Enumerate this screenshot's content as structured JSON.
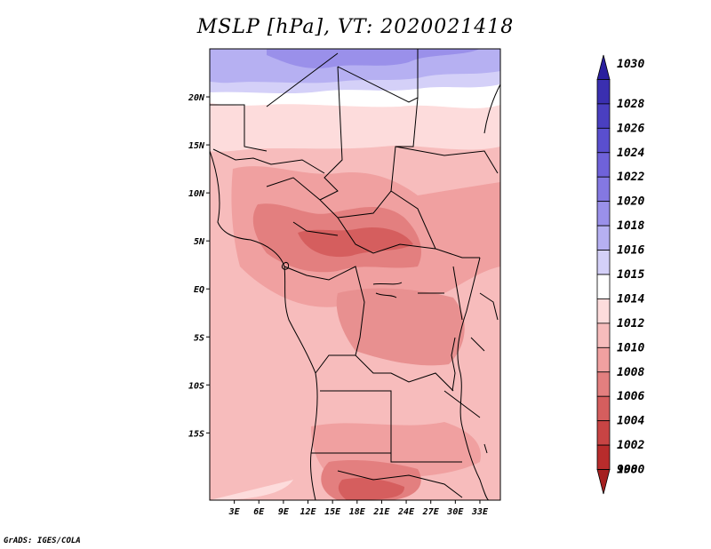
{
  "title": "MSLP [hPa], VT: 2020021418",
  "footer": "GrADS: IGES/COLA",
  "map": {
    "lon_range": [
      0,
      35.5
    ],
    "lat_range": [
      -22,
      25
    ],
    "lon_ticks": [
      "3E",
      "6E",
      "9E",
      "12E",
      "15E",
      "18E",
      "21E",
      "24E",
      "27E",
      "30E",
      "33E"
    ],
    "lat_ticks": [
      "20N",
      "15N",
      "10N",
      "5N",
      "EQ",
      "5S",
      "10S",
      "15S"
    ]
  },
  "colorbar": {
    "levels": [
      "1030",
      "1028",
      "1026",
      "1024",
      "1022",
      "1020",
      "1018",
      "1016",
      "1015",
      "1014",
      "1012",
      "1010",
      "1008",
      "1006",
      "1004",
      "1002",
      "1000",
      "998"
    ],
    "colors": [
      "#2a1f9e",
      "#3a2fb0",
      "#4a3fc0",
      "#5a4fcf",
      "#6f62da",
      "#8478e2",
      "#9a90ea",
      "#b6b0f2",
      "#d4d0f8",
      "#ffffff",
      "#fddcdc",
      "#f7bcbc",
      "#f0a0a0",
      "#e37f7f",
      "#d55e5e",
      "#c84444",
      "#b82c2c",
      "#a51f1f"
    ]
  }
}
